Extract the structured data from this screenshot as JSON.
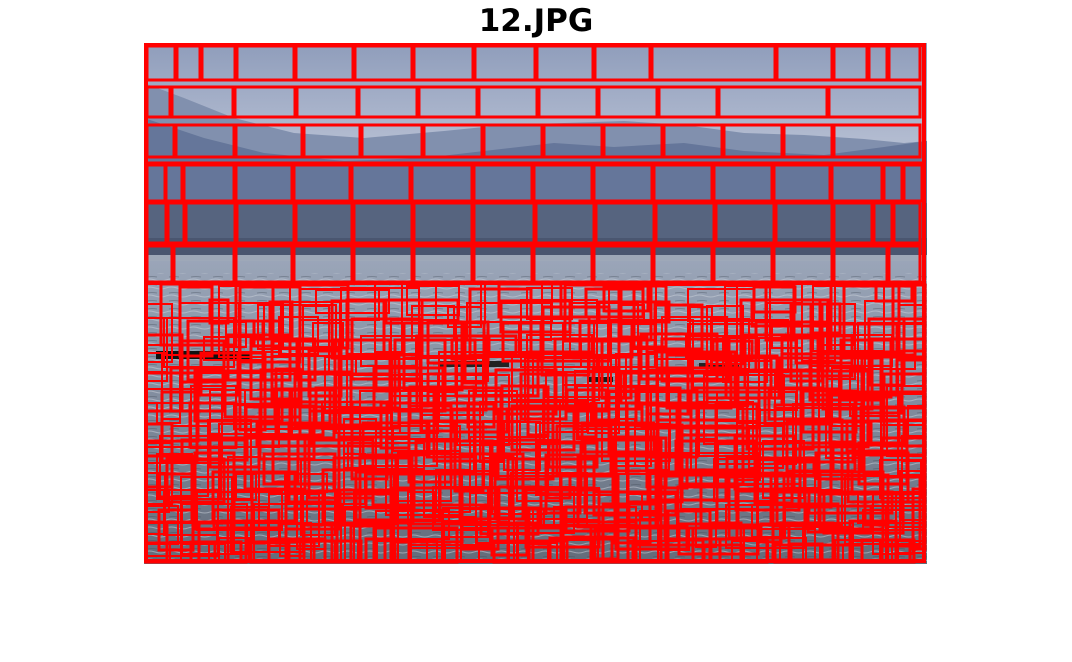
{
  "figure": {
    "title": "12.JPG"
  },
  "image": {
    "scene": "lake-with-mountains",
    "colors": {
      "sky_top": "#8f9dbb",
      "sky_bottom": "#b9c2d6",
      "mountain_far": "#7d8cab",
      "mountain_near": "#5f6f90",
      "treeline": "#4a5670",
      "water_top": "#8b98ad",
      "water_bottom": "#6c7686"
    }
  },
  "overlay": {
    "box_color": "#ff0000",
    "shape": "rectangle"
  }
}
